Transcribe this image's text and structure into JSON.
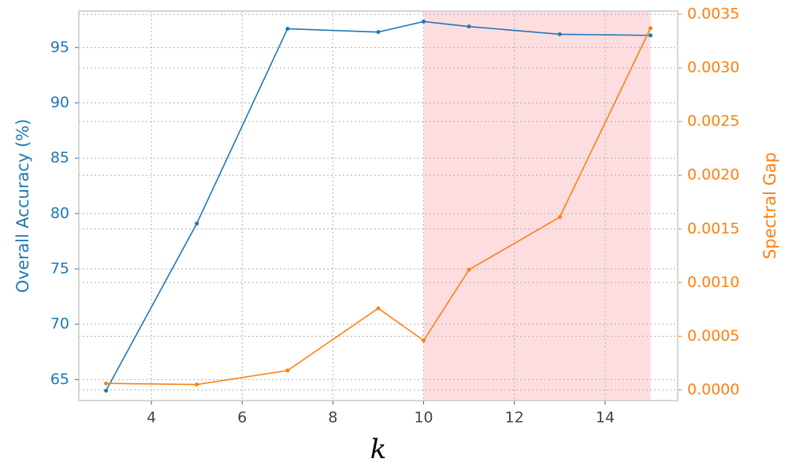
{
  "chart_data": {
    "type": "line",
    "x_label": "k",
    "y_label": "Overall Accuracy (%)",
    "y2_label": "Spectral Gap",
    "x": [
      3,
      5,
      7,
      9,
      10,
      11,
      13,
      15
    ],
    "series": [
      {
        "name": "Overall Accuracy (%)",
        "color": "#1f77b4",
        "values": [
          64.0,
          79.1,
          96.7,
          96.4,
          97.35,
          96.9,
          96.2,
          96.1
        ]
      },
      {
        "name": "Spectral Gap",
        "color": "#ff7f0e",
        "axis": "y2",
        "values": [
          6e-05,
          5e-05,
          0.00018,
          0.00076,
          0.00046,
          0.00112,
          0.00161,
          0.00337
        ]
      }
    ],
    "highlight_span": [
      10,
      15
    ],
    "highlight_color": "#fddde0",
    "xlim": [
      2.4,
      15.6
    ],
    "xticks": [
      4,
      6,
      8,
      10,
      12,
      14
    ],
    "ylim": [
      63.1,
      98.3
    ],
    "yticks": [
      65,
      70,
      75,
      80,
      85,
      90,
      95
    ],
    "y2lim": [
      -0.0001,
      0.00353
    ],
    "y2ticks": [
      {
        "value": 0,
        "label": "0.0000"
      },
      {
        "value": 0.0005,
        "label": "0.0005"
      },
      {
        "value": 0.001,
        "label": "0.0010"
      },
      {
        "value": 0.0015,
        "label": "0.0015"
      },
      {
        "value": 0.002,
        "label": "0.0020"
      },
      {
        "value": 0.0025,
        "label": "0.0025"
      },
      {
        "value": 0.003,
        "label": "0.0030"
      },
      {
        "value": 0.0035,
        "label": "0.0035"
      }
    ],
    "grid": true
  }
}
